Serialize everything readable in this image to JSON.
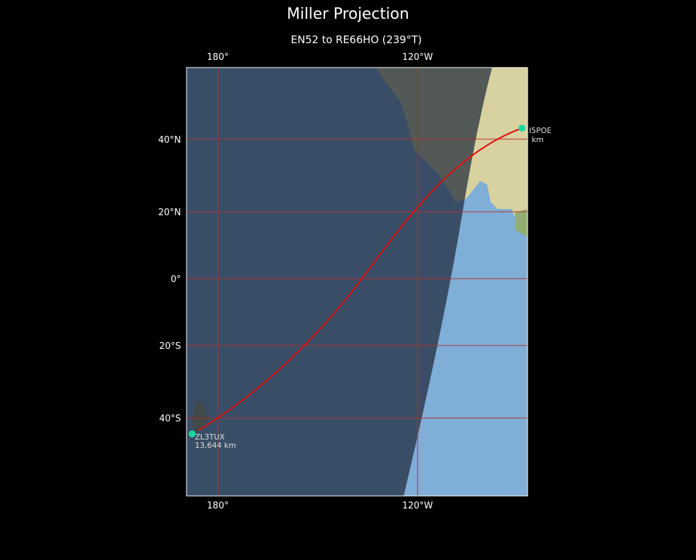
{
  "header": {
    "title": "Miller Projection",
    "subtitle": "EN52 to RE66HO (239°T)"
  },
  "graticule": {
    "longitudes": [
      {
        "value": 180,
        "label": "180°"
      },
      {
        "value": -120,
        "label": "120°W"
      }
    ],
    "latitudes": [
      {
        "value": 40,
        "label": "40°N"
      },
      {
        "value": 20,
        "label": "20°N"
      },
      {
        "value": 0,
        "label": "0°"
      },
      {
        "value": -20,
        "label": "20°S"
      },
      {
        "value": -40,
        "label": "40°S"
      }
    ]
  },
  "stations": [
    {
      "call": "I5POE",
      "distance": "km"
    },
    {
      "call": "ZL3TUX",
      "distance": "13,644 km"
    }
  ]
}
